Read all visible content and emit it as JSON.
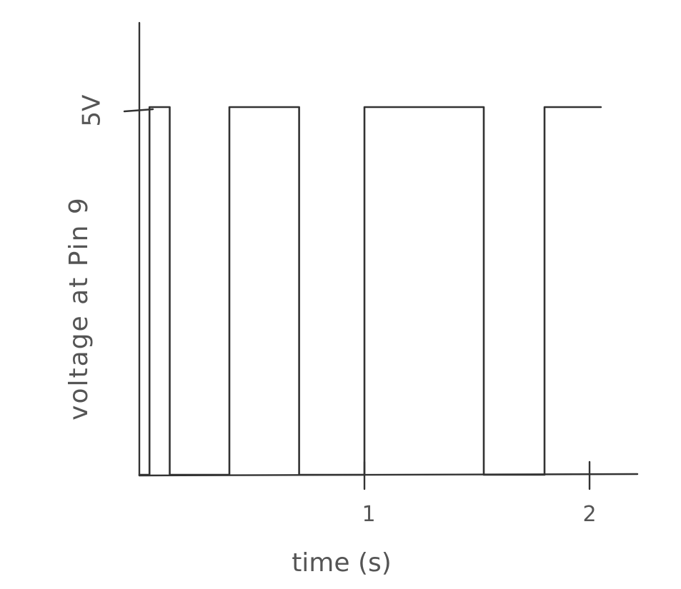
{
  "chart_data": {
    "type": "line",
    "title": "",
    "xlabel": "time (s)",
    "ylabel": "voltage at Pin 9",
    "xticks": [
      "1",
      "2"
    ],
    "yticks": [
      "5V"
    ],
    "xlim": [
      0,
      2.2
    ],
    "ylim": [
      0,
      5
    ],
    "grid": false,
    "series": [
      {
        "x": [
          0,
          0.045,
          0.045,
          0.135,
          0.135,
          0.4,
          0.4,
          0.71,
          0.71,
          1.0,
          1.0,
          1.53,
          1.53,
          1.8,
          1.8,
          2.05
        ],
        "y": [
          0,
          0,
          5,
          5,
          0,
          0,
          5,
          5,
          0,
          0,
          5,
          5,
          0,
          0,
          5,
          5
        ]
      }
    ]
  }
}
